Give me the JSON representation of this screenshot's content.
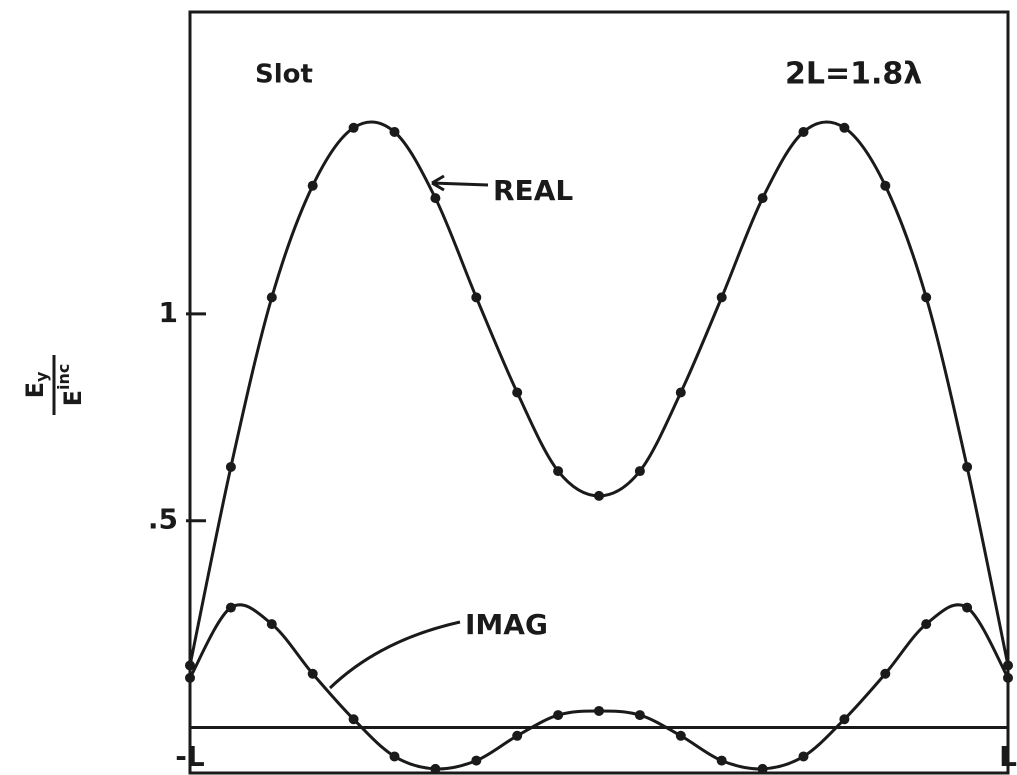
{
  "chart_data": {
    "type": "line",
    "annotations": {
      "slot": "Slot",
      "length": "2L=1.8λ",
      "real": "REAL",
      "imag": "IMAG"
    },
    "ylabel": {
      "numerator": "E",
      "numerator_sub": "y",
      "denominator": "E",
      "denominator_sup": "inc"
    },
    "x": [
      -1,
      -0.9,
      -0.8,
      -0.7,
      -0.6,
      -0.5,
      -0.4,
      -0.3,
      -0.2,
      -0.1,
      0,
      0.1,
      0.2,
      0.3,
      0.4,
      0.5,
      0.6,
      0.7,
      0.8,
      0.9,
      1
    ],
    "series": [
      {
        "name": "REAL",
        "color": "#1a1a1a",
        "values": [
          0.15,
          0.63,
          1.04,
          1.31,
          1.45,
          1.44,
          1.28,
          1.04,
          0.81,
          0.62,
          0.56,
          0.62,
          0.81,
          1.04,
          1.28,
          1.44,
          1.45,
          1.31,
          1.04,
          0.63,
          0.15
        ]
      },
      {
        "name": "IMAG",
        "color": "#1a1a1a",
        "values": [
          0.12,
          0.29,
          0.25,
          0.13,
          0.02,
          -0.07,
          -0.1,
          -0.08,
          -0.02,
          0.03,
          0.04,
          0.03,
          -0.02,
          -0.08,
          -0.1,
          -0.07,
          0.02,
          0.13,
          0.25,
          0.29,
          0.12
        ]
      }
    ],
    "xlim": [
      -1,
      1
    ],
    "xticks": [
      {
        "value": -1,
        "label": "-L"
      },
      {
        "value": 1,
        "label": "L"
      }
    ],
    "ylim": [
      -0.11,
      1.73
    ],
    "yticks": [
      {
        "value": 0.5,
        "label": ".5"
      },
      {
        "value": 1,
        "label": "1"
      }
    ]
  }
}
